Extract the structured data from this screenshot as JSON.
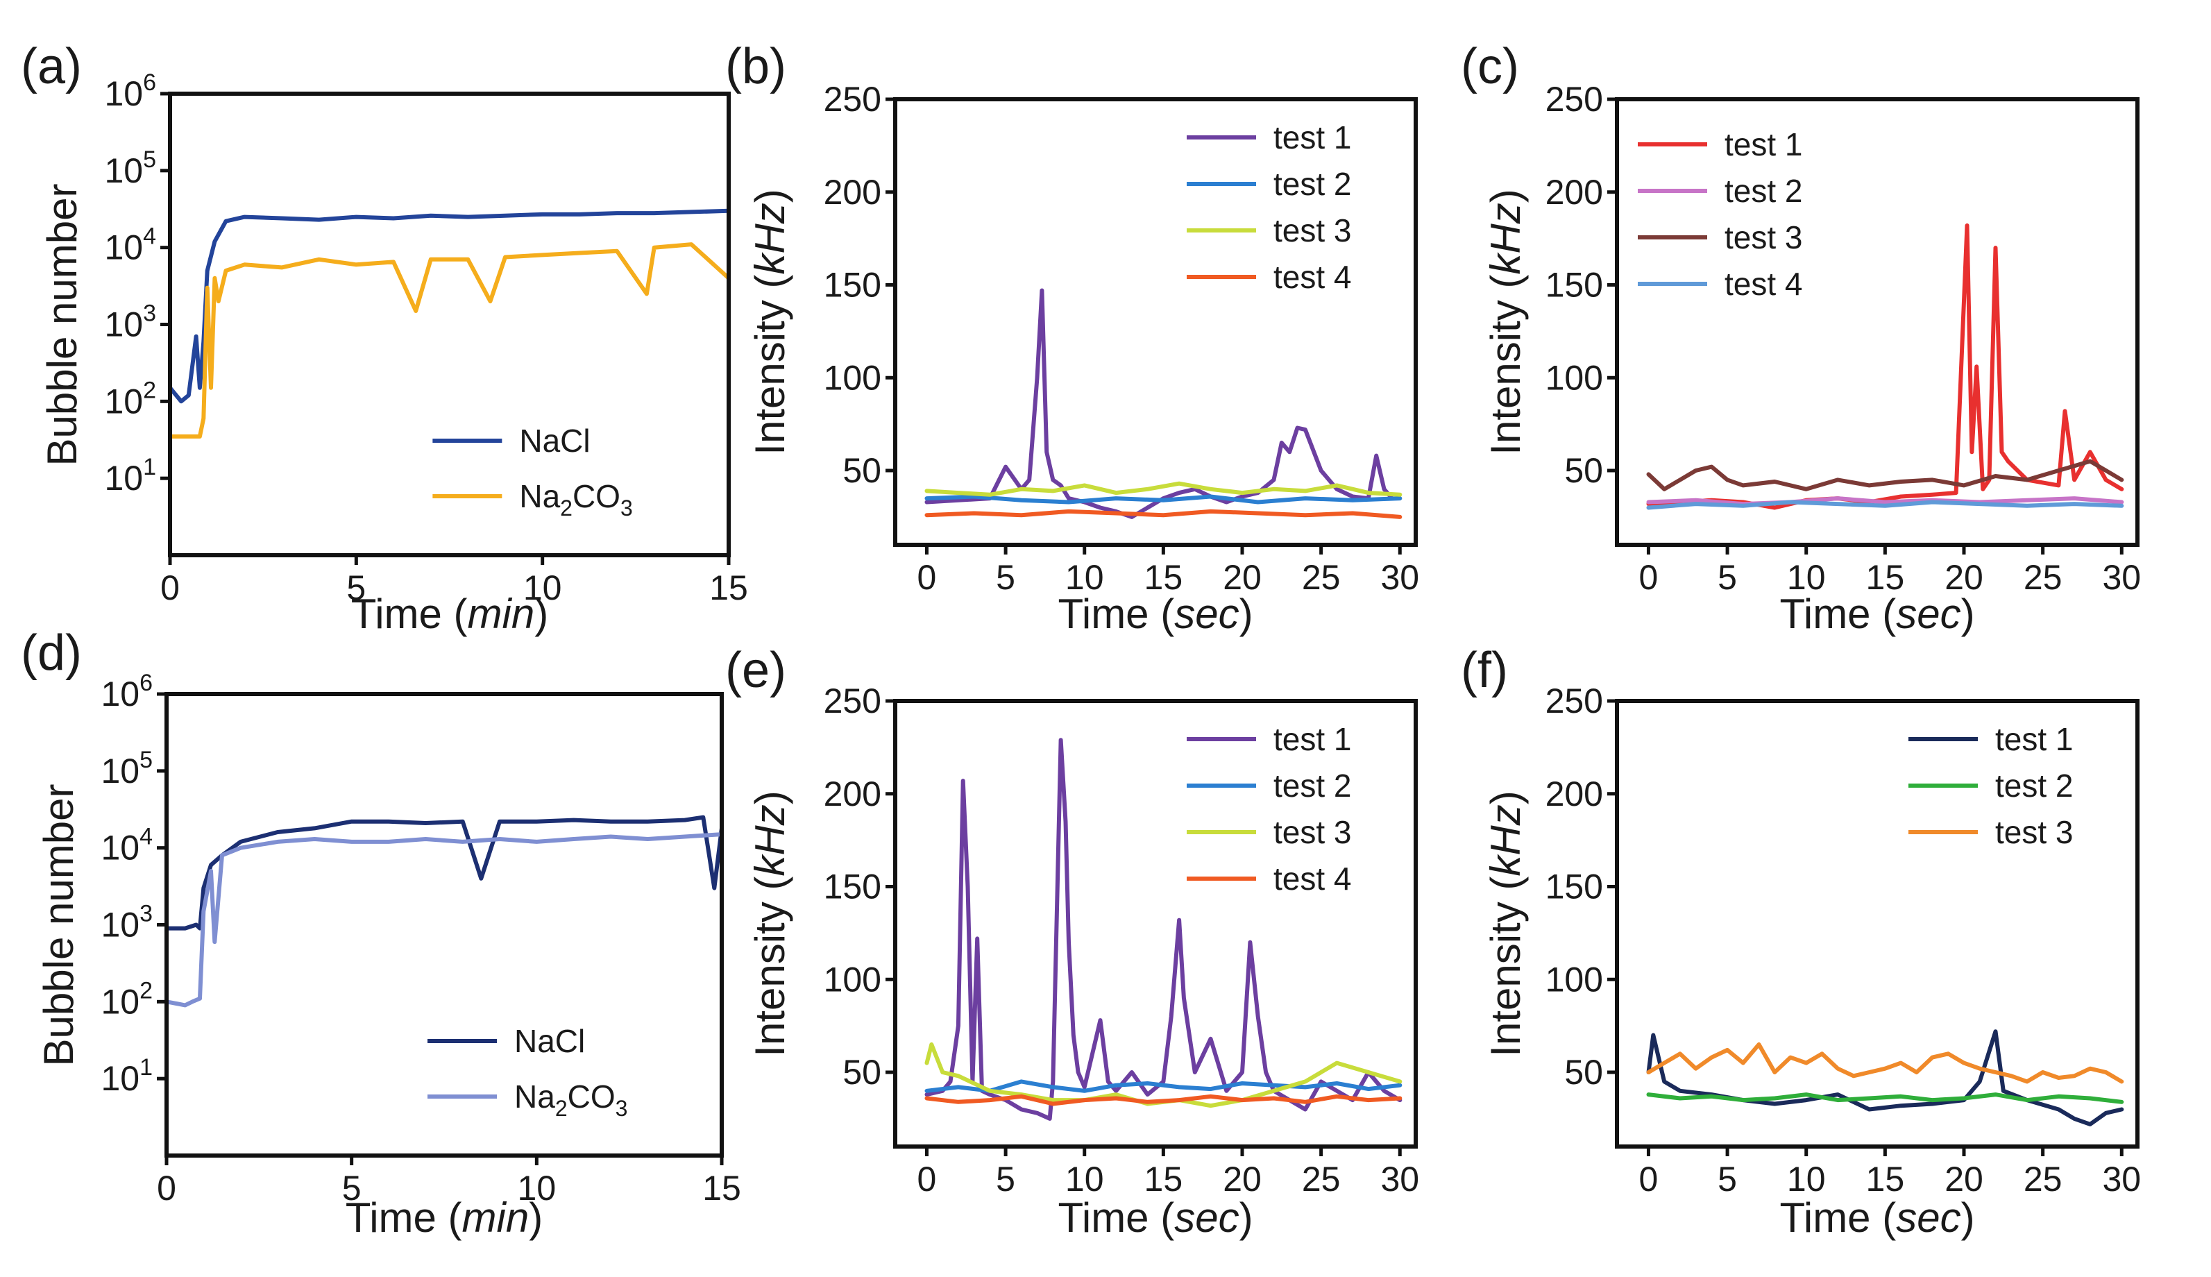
{
  "figure": {
    "panels": [
      {
        "id": "a",
        "label": "(a)"
      },
      {
        "id": "b",
        "label": "(b)"
      },
      {
        "id": "c",
        "label": "(c)"
      },
      {
        "id": "d",
        "label": "(d)"
      },
      {
        "id": "e",
        "label": "(e)"
      },
      {
        "id": "f",
        "label": "(f)"
      }
    ]
  },
  "chart_data": [
    {
      "panel": "(a)",
      "type": "line",
      "xlabel": "Time (min)",
      "ylabel": "Bubble number",
      "xlim": [
        0,
        15
      ],
      "ylim": [
        1,
        1000000
      ],
      "yscale": "log",
      "xticks": [
        0,
        5,
        10,
        15
      ],
      "yticks": [
        10,
        100,
        1000,
        10000,
        100000,
        1000000
      ],
      "ytick_labels": [
        "10^1",
        "10^2",
        "10^3",
        "10^4",
        "10^5",
        "10^6"
      ],
      "legend_position": "bottom-right",
      "series": [
        {
          "name": "NaCl",
          "color": "#23449a",
          "x": [
            0,
            0.3,
            0.5,
            0.7,
            0.8,
            0.9,
            1.0,
            1.2,
            1.5,
            2.0,
            3,
            4,
            5,
            6,
            7,
            8,
            9,
            10,
            11,
            12,
            13,
            14,
            15
          ],
          "y": [
            150,
            100,
            120,
            700,
            150,
            600,
            5000,
            12000,
            22000,
            25000,
            24000,
            23000,
            25000,
            24000,
            26000,
            25000,
            26000,
            27000,
            27000,
            28000,
            28000,
            29000,
            30000
          ]
        },
        {
          "name": "Na2CO3",
          "name_html": "Na<sub>2</sub>CO<sub>3</sub>",
          "color": "#f5ad1c",
          "x": [
            0,
            0.5,
            0.8,
            0.9,
            1.0,
            1.1,
            1.2,
            1.3,
            1.5,
            2,
            3,
            4,
            5,
            6,
            6.6,
            7,
            8,
            8.6,
            9,
            10,
            11,
            12,
            12.8,
            13,
            14,
            15
          ],
          "y": [
            35,
            35,
            35,
            60,
            3000,
            150,
            4000,
            2000,
            5000,
            6000,
            5500,
            7000,
            6000,
            6500,
            1500,
            7000,
            7000,
            2000,
            7500,
            8000,
            8500,
            9000,
            2500,
            10000,
            11000,
            4000
          ]
        }
      ]
    },
    {
      "panel": "(b)",
      "type": "line",
      "xlabel": "Time (sec)",
      "ylabel": "Intensity (kHz)",
      "xlim": [
        -2,
        31
      ],
      "ylim": [
        10,
        250
      ],
      "xticks": [
        0,
        5,
        10,
        15,
        20,
        25,
        30
      ],
      "yticks": [
        50,
        100,
        150,
        200,
        250
      ],
      "legend_position": "top-right",
      "series": [
        {
          "name": "test 1",
          "color": "#6c3fa0",
          "x": [
            0,
            2,
            4,
            5,
            6,
            6.5,
            7,
            7.3,
            7.6,
            8,
            8.5,
            9,
            10,
            11,
            12,
            13,
            14,
            15,
            16,
            17,
            18,
            19,
            20,
            21,
            22,
            22.5,
            23,
            23.5,
            24,
            25,
            26,
            27,
            28,
            28.5,
            29,
            29.5
          ],
          "y": [
            33,
            34,
            35,
            52,
            40,
            45,
            100,
            147,
            60,
            45,
            42,
            35,
            33,
            30,
            28,
            25,
            30,
            35,
            38,
            40,
            36,
            33,
            36,
            38,
            45,
            65,
            60,
            73,
            72,
            50,
            40,
            36,
            35,
            58,
            40,
            35
          ]
        },
        {
          "name": "test 2",
          "color": "#2b7fd1",
          "x": [
            0,
            3,
            6,
            9,
            12,
            15,
            18,
            21,
            24,
            27,
            30
          ],
          "y": [
            35,
            36,
            34,
            33,
            35,
            34,
            36,
            33,
            35,
            34,
            35
          ]
        },
        {
          "name": "test 3",
          "color": "#c8dc3b",
          "x": [
            0,
            2,
            4,
            6,
            8,
            10,
            12,
            14,
            16,
            18,
            20,
            22,
            24,
            26,
            28,
            30
          ],
          "y": [
            39,
            38,
            37,
            40,
            39,
            42,
            38,
            40,
            43,
            40,
            38,
            40,
            39,
            42,
            38,
            37
          ]
        },
        {
          "name": "test 4",
          "color": "#f05a22",
          "x": [
            0,
            3,
            6,
            9,
            12,
            15,
            18,
            21,
            24,
            27,
            30
          ],
          "y": [
            26,
            27,
            26,
            28,
            27,
            26,
            28,
            27,
            26,
            27,
            25
          ]
        }
      ]
    },
    {
      "panel": "(c)",
      "type": "line",
      "xlabel": "Time (sec)",
      "ylabel": "Intensity (kHz)",
      "xlim": [
        -2,
        31
      ],
      "ylim": [
        10,
        250
      ],
      "xticks": [
        0,
        5,
        10,
        15,
        20,
        25,
        30
      ],
      "yticks": [
        50,
        100,
        150,
        200,
        250
      ],
      "legend_position": "top-left",
      "series": [
        {
          "name": "test 1",
          "color": "#e8302f",
          "x": [
            0,
            2,
            4,
            6,
            8,
            10,
            12,
            14,
            16,
            18,
            19.5,
            20.2,
            20.5,
            20.8,
            21.2,
            21.6,
            22,
            22.4,
            22.8,
            24,
            26,
            26.4,
            27,
            28,
            29,
            30
          ],
          "y": [
            32,
            33,
            34,
            33,
            30,
            34,
            35,
            33,
            36,
            37,
            38,
            182,
            60,
            106,
            40,
            45,
            170,
            60,
            55,
            45,
            42,
            82,
            45,
            60,
            45,
            40
          ]
        },
        {
          "name": "test 2",
          "color": "#c774c7",
          "x": [
            0,
            3,
            6,
            9,
            12,
            15,
            18,
            21,
            24,
            27,
            30
          ],
          "y": [
            33,
            34,
            32,
            33,
            35,
            33,
            34,
            33,
            34,
            35,
            33
          ]
        },
        {
          "name": "test 3",
          "color": "#7b3a36",
          "x": [
            0,
            1,
            2,
            3,
            4,
            5,
            6,
            8,
            10,
            12,
            14,
            16,
            18,
            20,
            22,
            24,
            26,
            28,
            30
          ],
          "y": [
            48,
            40,
            45,
            50,
            52,
            45,
            42,
            44,
            40,
            45,
            42,
            44,
            45,
            42,
            47,
            45,
            50,
            55,
            45
          ]
        },
        {
          "name": "test 4",
          "color": "#5f9ad8",
          "x": [
            0,
            3,
            6,
            9,
            12,
            15,
            18,
            21,
            24,
            27,
            30
          ],
          "y": [
            30,
            32,
            31,
            33,
            32,
            31,
            33,
            32,
            31,
            32,
            31
          ]
        }
      ]
    },
    {
      "panel": "(d)",
      "type": "line",
      "xlabel": "Time (min)",
      "ylabel": "Bubble number",
      "xlim": [
        0,
        15
      ],
      "ylim": [
        1,
        1000000
      ],
      "yscale": "log",
      "xticks": [
        0,
        5,
        10,
        15
      ],
      "yticks": [
        10,
        100,
        1000,
        10000,
        100000,
        1000000
      ],
      "ytick_labels": [
        "10^1",
        "10^2",
        "10^3",
        "10^4",
        "10^5",
        "10^6"
      ],
      "legend_position": "bottom-right",
      "series": [
        {
          "name": "NaCl",
          "color": "#1c2f72",
          "x": [
            0,
            0.5,
            0.8,
            0.9,
            1.0,
            1.2,
            1.5,
            2,
            3,
            4,
            5,
            6,
            7,
            8,
            8.5,
            9,
            10,
            11,
            12,
            13,
            14,
            14.5,
            14.8,
            15
          ],
          "y": [
            900,
            900,
            1000,
            900,
            3000,
            6000,
            8000,
            12000,
            16000,
            18000,
            22000,
            22000,
            21000,
            22000,
            4000,
            22000,
            22000,
            23000,
            22000,
            22000,
            23000,
            25000,
            3000,
            18000
          ]
        },
        {
          "name": "Na2CO3",
          "name_html": "Na<sub>2</sub>CO<sub>3</sub>",
          "color": "#7f8fd2",
          "x": [
            0,
            0.5,
            0.7,
            0.9,
            1.0,
            1.2,
            1.3,
            1.5,
            2,
            3,
            4,
            5,
            6,
            7,
            8,
            9,
            10,
            11,
            12,
            13,
            14,
            15
          ],
          "y": [
            100,
            90,
            100,
            110,
            1500,
            5000,
            600,
            8000,
            10000,
            12000,
            13000,
            12000,
            12000,
            13000,
            12000,
            13000,
            12000,
            13000,
            14000,
            13000,
            14000,
            15000
          ]
        }
      ]
    },
    {
      "panel": "(e)",
      "type": "line",
      "xlabel": "Time (sec)",
      "ylabel": "Intensity (kHz)",
      "xlim": [
        -2,
        31
      ],
      "ylim": [
        10,
        250
      ],
      "xticks": [
        0,
        5,
        10,
        15,
        20,
        25,
        30
      ],
      "yticks": [
        50,
        100,
        150,
        200,
        250
      ],
      "legend_position": "top-right",
      "series": [
        {
          "name": "test 1",
          "color": "#6c3fa0",
          "x": [
            0,
            1,
            1.5,
            2,
            2.3,
            2.6,
            2.9,
            3.2,
            3.5,
            4,
            5,
            6,
            7,
            7.8,
            8,
            8.5,
            8.8,
            9,
            9.3,
            9.6,
            10,
            11,
            11.5,
            12,
            13,
            14,
            15,
            15.5,
            16,
            16.3,
            17,
            18,
            19,
            20,
            20.5,
            21,
            21.5,
            22,
            23,
            24,
            25,
            26,
            27,
            28,
            29,
            30
          ],
          "y": [
            38,
            40,
            45,
            75,
            207,
            150,
            45,
            122,
            40,
            38,
            35,
            30,
            28,
            25,
            45,
            229,
            185,
            120,
            70,
            50,
            42,
            78,
            45,
            40,
            50,
            38,
            45,
            80,
            132,
            90,
            50,
            68,
            40,
            50,
            120,
            80,
            50,
            40,
            35,
            30,
            45,
            40,
            35,
            50,
            40,
            35
          ]
        },
        {
          "name": "test 2",
          "color": "#2b7fd1",
          "x": [
            0,
            2,
            4,
            6,
            8,
            10,
            12,
            14,
            16,
            18,
            20,
            22,
            24,
            26,
            28,
            30
          ],
          "y": [
            40,
            42,
            40,
            45,
            42,
            40,
            43,
            44,
            42,
            41,
            44,
            43,
            42,
            44,
            41,
            43
          ]
        },
        {
          "name": "test 3",
          "color": "#c8dc3b",
          "x": [
            0,
            0.3,
            1,
            2,
            4,
            6,
            8,
            10,
            12,
            14,
            16,
            18,
            20,
            22,
            24,
            26,
            28,
            30
          ],
          "y": [
            55,
            65,
            50,
            48,
            40,
            38,
            35,
            35,
            38,
            33,
            35,
            32,
            35,
            40,
            45,
            55,
            50,
            45
          ]
        },
        {
          "name": "test 4",
          "color": "#f05a22",
          "x": [
            0,
            2,
            4,
            6,
            8,
            10,
            12,
            14,
            16,
            18,
            20,
            22,
            24,
            26,
            28,
            30
          ],
          "y": [
            36,
            34,
            35,
            37,
            33,
            35,
            36,
            34,
            35,
            37,
            35,
            36,
            34,
            37,
            35,
            36
          ]
        }
      ]
    },
    {
      "panel": "(f)",
      "type": "line",
      "xlabel": "Time (sec)",
      "ylabel": "Intensity (kHz)",
      "xlim": [
        -2,
        31
      ],
      "ylim": [
        10,
        250
      ],
      "xticks": [
        0,
        5,
        10,
        15,
        20,
        25,
        30
      ],
      "yticks": [
        50,
        100,
        150,
        200,
        250
      ],
      "legend_position": "top-right",
      "series": [
        {
          "name": "test 1",
          "color": "#1a2a5a",
          "x": [
            0,
            0.3,
            1,
            2,
            4,
            6,
            8,
            10,
            12,
            14,
            16,
            18,
            20,
            21,
            22,
            22.5,
            24,
            26,
            27,
            28,
            29,
            30
          ],
          "y": [
            50,
            70,
            45,
            40,
            38,
            35,
            33,
            35,
            38,
            30,
            32,
            33,
            35,
            45,
            72,
            40,
            35,
            30,
            25,
            22,
            28,
            30
          ]
        },
        {
          "name": "test 2",
          "color": "#2fae3a",
          "x": [
            0,
            2,
            4,
            6,
            8,
            10,
            12,
            14,
            16,
            18,
            20,
            22,
            24,
            26,
            28,
            30
          ],
          "y": [
            38,
            36,
            37,
            35,
            36,
            38,
            35,
            36,
            37,
            35,
            36,
            38,
            35,
            37,
            36,
            34
          ]
        },
        {
          "name": "test 3",
          "color": "#f08a2a",
          "x": [
            0,
            1,
            2,
            3,
            4,
            5,
            6,
            7,
            8,
            9,
            10,
            11,
            12,
            13,
            14,
            15,
            16,
            17,
            18,
            19,
            20,
            21,
            22,
            23,
            24,
            25,
            26,
            27,
            28,
            29,
            30
          ],
          "y": [
            50,
            55,
            60,
            52,
            58,
            62,
            55,
            65,
            50,
            58,
            55,
            60,
            52,
            48,
            50,
            52,
            55,
            50,
            58,
            60,
            55,
            52,
            50,
            48,
            45,
            50,
            47,
            48,
            52,
            50,
            45
          ]
        }
      ]
    }
  ]
}
